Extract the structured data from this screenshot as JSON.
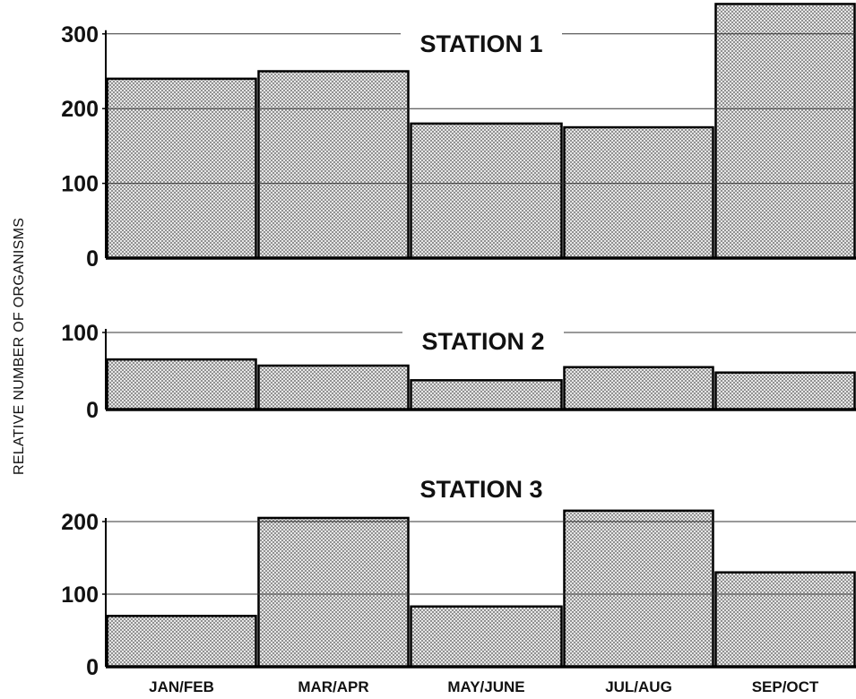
{
  "chart_data": {
    "type": "bar",
    "ylabel": "RELATIVE NUMBER OF ORGANISMS",
    "categories": [
      "JAN/FEB",
      "MAR/APR",
      "MAY/JUNE",
      "JUL/AUG",
      "SEP/OCT"
    ],
    "panels": [
      {
        "title": "STATION 1",
        "ylim": [
          0,
          300
        ],
        "yticks": [
          "0",
          "100",
          "200",
          "300"
        ],
        "values": [
          240,
          250,
          180,
          175,
          340
        ]
      },
      {
        "title": "STATION 2",
        "ylim": [
          0,
          100
        ],
        "yticks": [
          "0",
          "100"
        ],
        "values": [
          65,
          57,
          38,
          55,
          48
        ]
      },
      {
        "title": "STATION 3",
        "ylim": [
          0,
          200
        ],
        "yticks": [
          "0",
          "100",
          "200"
        ],
        "values": [
          70,
          205,
          83,
          215,
          130
        ]
      }
    ]
  },
  "colors": {
    "bar_fill": "#d8d8d8",
    "bar_stroke": "#000000",
    "gridline": "#333333"
  }
}
